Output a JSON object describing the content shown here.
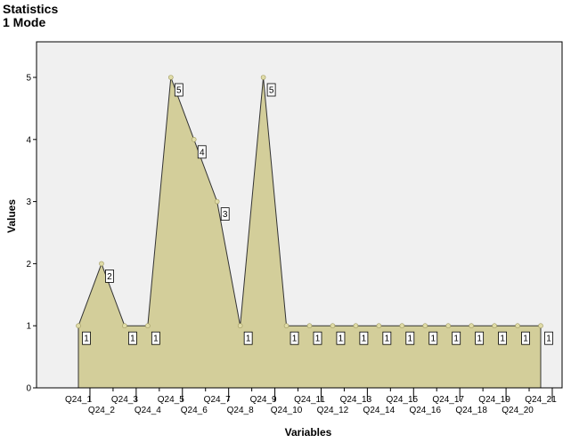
{
  "header": {
    "title": "Statistics",
    "subtitle": "1 Mode"
  },
  "chart_data": {
    "type": "area",
    "categories": [
      "Q24_1",
      "Q24_2",
      "Q24_3",
      "Q24_4",
      "Q24_5",
      "Q24_6",
      "Q24_7",
      "Q24_8",
      "Q24_9",
      "Q24_10",
      "Q24_11",
      "Q24_12",
      "Q24_13",
      "Q24_14",
      "Q24_15",
      "Q24_16",
      "Q24_17",
      "Q24_18",
      "Q24_19",
      "Q24_20",
      "Q24_21"
    ],
    "values": [
      1,
      2,
      1,
      1,
      5,
      4,
      3,
      1,
      5,
      1,
      1,
      1,
      1,
      1,
      1,
      1,
      1,
      1,
      1,
      1,
      1
    ],
    "data_labels": [
      "1",
      "2",
      "1",
      "1",
      "5",
      "4",
      "3",
      "1",
      "5",
      "1",
      "1",
      "1",
      "1",
      "1",
      "1",
      "1",
      "1",
      "1",
      "1",
      "1",
      "1"
    ],
    "xlabel": "Variables",
    "ylabel": "Values",
    "ylim": [
      0,
      5.4
    ],
    "yticks": [
      0,
      1,
      2,
      3,
      4,
      5
    ],
    "grid": false,
    "legend": "none",
    "colors": {
      "plot_background": "#f0f0f0",
      "area_fill": "#d3ce9a",
      "area_stroke": "#333333",
      "marker": "#e0dca8"
    }
  }
}
